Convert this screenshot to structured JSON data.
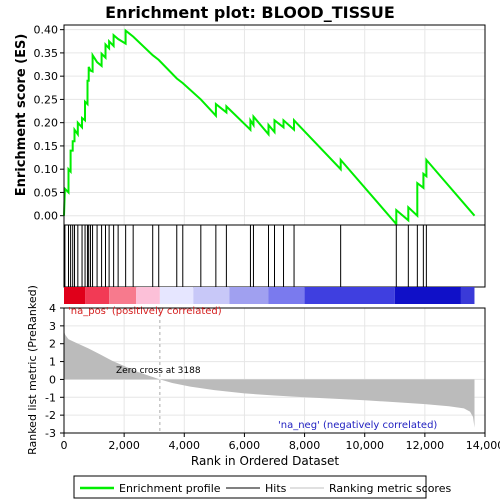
{
  "chart_data": {
    "type": "line",
    "title": "Enrichment plot: BLOOD_TISSUE",
    "panels": {
      "enrichment": {
        "ylabel": "Enrichment score (ES)",
        "ylim": [
          -0.02,
          0.41
        ],
        "yticks": [
          "0.00",
          "0.05",
          "0.10",
          "0.15",
          "0.20",
          "0.25",
          "0.30",
          "0.35",
          "0.40"
        ],
        "grid": true
      },
      "ranked_metric": {
        "ylabel": "Ranked list metric (PreRanked)",
        "xlabel": "Rank in Ordered Dataset",
        "ylim": [
          -3,
          4
        ],
        "yticks": [
          "-3",
          "-2",
          "-1",
          "0",
          "1",
          "2",
          "3",
          "4"
        ],
        "grid": true,
        "annotations": {
          "pos_label": "'na_pos' (positively correlated)",
          "neg_label": "'na_neg' (negatively correlated)",
          "zero_cross": "Zero cross at 3188"
        },
        "zero_cross_rank": 3188
      }
    },
    "xlim": [
      0,
      14000
    ],
    "xticks": [
      "0",
      "2,000",
      "4,000",
      "6,000",
      "8,000",
      "10,000",
      "12,000",
      "14,000"
    ],
    "n_genes": 13650,
    "hits": [
      30,
      150,
      220,
      290,
      350,
      460,
      600,
      700,
      780,
      820,
      880,
      950,
      1100,
      1250,
      1380,
      1500,
      1650,
      1800,
      2050,
      2300,
      2950,
      3150,
      3750,
      3950,
      4550,
      5050,
      5400,
      6200,
      6300,
      6800,
      7000,
      7300,
      7650,
      9200,
      11050,
      11450,
      11750,
      11950,
      12050
    ],
    "es_points": [
      [
        0,
        0.0
      ],
      [
        30,
        0.058
      ],
      [
        150,
        0.05
      ],
      [
        150,
        0.1
      ],
      [
        220,
        0.095
      ],
      [
        220,
        0.14
      ],
      [
        290,
        0.14
      ],
      [
        290,
        0.16
      ],
      [
        350,
        0.16
      ],
      [
        350,
        0.185
      ],
      [
        460,
        0.175
      ],
      [
        460,
        0.2
      ],
      [
        600,
        0.19
      ],
      [
        600,
        0.21
      ],
      [
        700,
        0.205
      ],
      [
        700,
        0.245
      ],
      [
        780,
        0.24
      ],
      [
        780,
        0.29
      ],
      [
        820,
        0.29
      ],
      [
        820,
        0.32
      ],
      [
        880,
        0.312
      ],
      [
        950,
        0.31
      ],
      [
        950,
        0.345
      ],
      [
        1100,
        0.33
      ],
      [
        1250,
        0.322
      ],
      [
        1250,
        0.348
      ],
      [
        1380,
        0.34
      ],
      [
        1380,
        0.368
      ],
      [
        1500,
        0.36
      ],
      [
        1500,
        0.375
      ],
      [
        1650,
        0.365
      ],
      [
        1650,
        0.388
      ],
      [
        1800,
        0.38
      ],
      [
        2050,
        0.37
      ],
      [
        2050,
        0.398
      ],
      [
        2300,
        0.385
      ],
      [
        2950,
        0.345
      ],
      [
        3150,
        0.335
      ],
      [
        3750,
        0.295
      ],
      [
        3950,
        0.285
      ],
      [
        4550,
        0.25
      ],
      [
        5050,
        0.215
      ],
      [
        5050,
        0.24
      ],
      [
        5400,
        0.222
      ],
      [
        5400,
        0.235
      ],
      [
        6200,
        0.185
      ],
      [
        6200,
        0.205
      ],
      [
        6300,
        0.195
      ],
      [
        6300,
        0.213
      ],
      [
        6800,
        0.175
      ],
      [
        6800,
        0.195
      ],
      [
        7000,
        0.18
      ],
      [
        7000,
        0.205
      ],
      [
        7300,
        0.19
      ],
      [
        7300,
        0.205
      ],
      [
        7650,
        0.185
      ],
      [
        7650,
        0.205
      ],
      [
        9200,
        0.1
      ],
      [
        9200,
        0.12
      ],
      [
        11050,
        -0.018
      ],
      [
        11050,
        0.012
      ],
      [
        11450,
        -0.01
      ],
      [
        11450,
        0.018
      ],
      [
        11750,
        0.0
      ],
      [
        11750,
        0.07
      ],
      [
        11950,
        0.06
      ],
      [
        11950,
        0.09
      ],
      [
        12050,
        0.085
      ],
      [
        12050,
        0.12
      ],
      [
        13650,
        0.0
      ]
    ],
    "metric_points": [
      [
        0,
        2.7
      ],
      [
        40,
        2.5
      ],
      [
        150,
        2.25
      ],
      [
        400,
        2.05
      ],
      [
        800,
        1.75
      ],
      [
        1200,
        1.4
      ],
      [
        1600,
        1.05
      ],
      [
        2000,
        0.75
      ],
      [
        2400,
        0.45
      ],
      [
        2800,
        0.22
      ],
      [
        3188,
        0.0
      ],
      [
        3600,
        -0.2
      ],
      [
        4200,
        -0.4
      ],
      [
        5000,
        -0.6
      ],
      [
        6000,
        -0.78
      ],
      [
        7000,
        -0.9
      ],
      [
        8000,
        -1.0
      ],
      [
        9000,
        -1.08
      ],
      [
        10000,
        -1.17
      ],
      [
        11000,
        -1.27
      ],
      [
        12000,
        -1.38
      ],
      [
        12800,
        -1.5
      ],
      [
        13300,
        -1.62
      ],
      [
        13500,
        -1.8
      ],
      [
        13600,
        -2.1
      ],
      [
        13650,
        -2.7
      ]
    ],
    "legend": {
      "placement": "bottom",
      "entries": [
        {
          "label": "Enrichment profile",
          "color": "#00ee00"
        },
        {
          "label": "Hits",
          "color": "#000000"
        },
        {
          "label": "Ranking metric scores",
          "color": "#c0c0c0"
        }
      ]
    },
    "colors": {
      "es_line": "#00ee00",
      "metric_fill": "#bbbbbb",
      "grid": "#e6e6e6",
      "zero_cross_line": "#aaaaaa",
      "pos_label": "#d62020",
      "neg_label": "#2020c0"
    },
    "bar_gradient": [
      {
        "from": 0,
        "to": 700,
        "color": "#e0001a"
      },
      {
        "from": 700,
        "to": 1500,
        "color": "#f23a55"
      },
      {
        "from": 1500,
        "to": 2400,
        "color": "#f77a8d"
      },
      {
        "from": 2400,
        "to": 3188,
        "color": "#fcc0d8"
      },
      {
        "from": 3188,
        "to": 4300,
        "color": "#e6e6ff"
      },
      {
        "from": 4300,
        "to": 5500,
        "color": "#c8c8f8"
      },
      {
        "from": 5500,
        "to": 6800,
        "color": "#a0a0f0"
      },
      {
        "from": 6800,
        "to": 8000,
        "color": "#7a7aee"
      },
      {
        "from": 8000,
        "to": 11000,
        "color": "#3f3fe0"
      },
      {
        "from": 11000,
        "to": 13200,
        "color": "#1010c8"
      },
      {
        "from": 13200,
        "to": 13650,
        "color": "#3a3ad8"
      }
    ]
  }
}
